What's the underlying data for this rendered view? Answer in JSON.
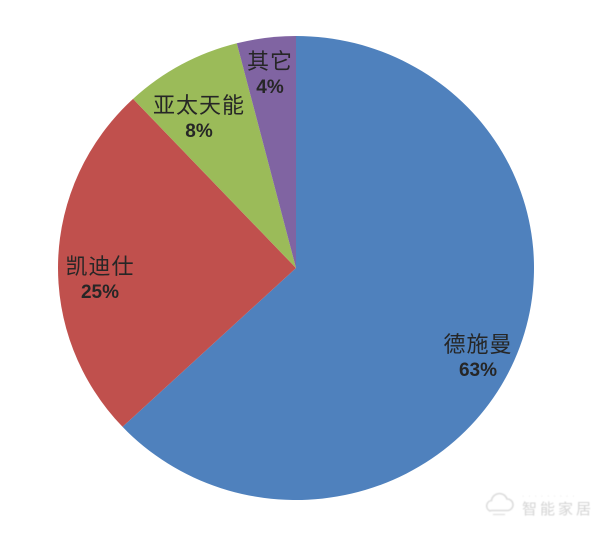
{
  "page": {
    "background": "#ffffff"
  },
  "chart_data": {
    "type": "pie",
    "title": "",
    "direction": "clockwise",
    "start_angle_deg": 0,
    "legend": "none",
    "labels_position": "inside",
    "slices": [
      {
        "label": "德施曼",
        "value": 63,
        "percent_label": "63%",
        "color": "#4F81BD"
      },
      {
        "label": "凯迪仕",
        "value": 25,
        "percent_label": "25%",
        "color": "#C0504D"
      },
      {
        "label": "亚太天能",
        "value": 8,
        "percent_label": "8%",
        "color": "#9BBB59"
      },
      {
        "label": "其它",
        "value": 4,
        "percent_label": "4%",
        "color": "#8064A2"
      }
    ]
  },
  "watermark": {
    "icon": "cloud-icon",
    "text_small": "· · · · · · · · ·",
    "text_main": "智能家居"
  }
}
